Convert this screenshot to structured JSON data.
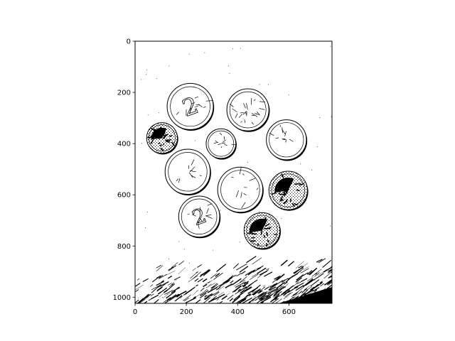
{
  "figure": {
    "description_kind": "binarized photo of coins shown with image axes",
    "colors": {
      "foreground": "#000000",
      "background": "#ffffff"
    }
  },
  "axes": {
    "x_range": [
      0,
      768
    ],
    "y_range": [
      1024,
      0
    ],
    "x_ticks": [
      0,
      200,
      400,
      600
    ],
    "y_ticks": [
      0,
      200,
      400,
      600,
      800,
      1000
    ]
  },
  "coins": [
    {
      "label": "2",
      "cx": 215,
      "cy": 255,
      "r": 90,
      "style": "outline"
    },
    {
      "label": "",
      "cx": 440,
      "cy": 268,
      "r": 82,
      "style": "textured"
    },
    {
      "label": "",
      "cx": 105,
      "cy": 378,
      "r": 60,
      "style": "dark"
    },
    {
      "label": "",
      "cx": 335,
      "cy": 400,
      "r": 58,
      "style": "outline"
    },
    {
      "label": "",
      "cx": 590,
      "cy": 385,
      "r": 78,
      "style": "outline"
    },
    {
      "label": "",
      "cx": 205,
      "cy": 510,
      "r": 88,
      "style": "outline"
    },
    {
      "label": "",
      "cx": 410,
      "cy": 580,
      "r": 88,
      "style": "outline"
    },
    {
      "label": "",
      "cx": 597,
      "cy": 583,
      "r": 75,
      "style": "dark"
    },
    {
      "label": "2",
      "cx": 250,
      "cy": 685,
      "r": 80,
      "style": "outline"
    },
    {
      "label": "",
      "cx": 495,
      "cy": 740,
      "r": 70,
      "style": "dark"
    }
  ]
}
